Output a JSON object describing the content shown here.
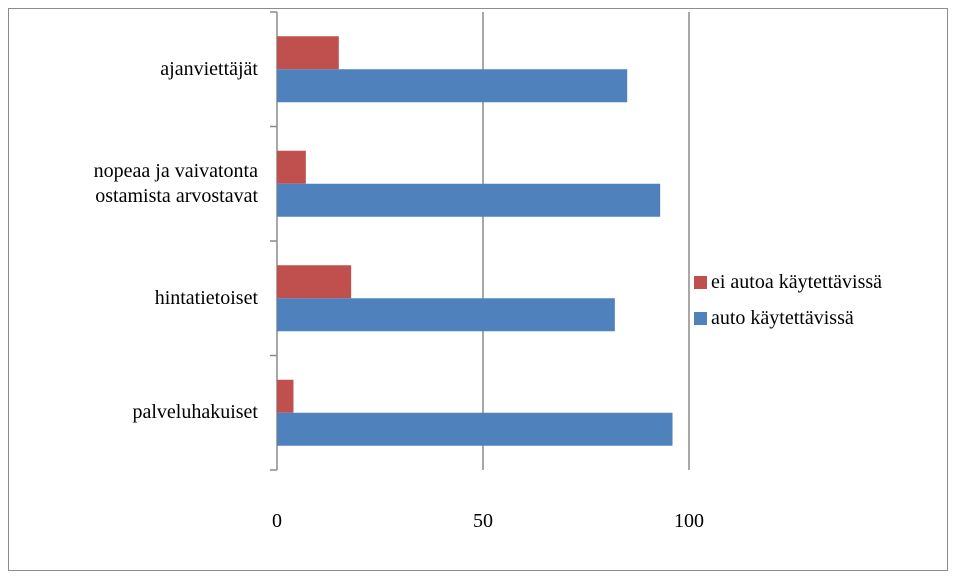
{
  "chart_data": {
    "type": "bar",
    "orientation": "horizontal",
    "categories": [
      "palveluhakuiset",
      "hintatietoiset",
      "nopeaa ja vaivatonta ostamista arvostavat",
      "ajanviettäjät"
    ],
    "category_lines": [
      [
        "palveluhakuiset"
      ],
      [
        "hintatietoiset"
      ],
      [
        "nopeaa ja vaivatonta",
        "ostamista arvostavat"
      ],
      [
        "ajanviettäjät"
      ]
    ],
    "series": [
      {
        "name": "auto käytettävissä",
        "color": "#4f81bd",
        "values": [
          96,
          82,
          93,
          85
        ]
      },
      {
        "name": "ei autoa käytettävissä",
        "color": "#c0504d",
        "values": [
          4,
          18,
          7,
          15
        ]
      }
    ],
    "xlim": [
      0,
      100
    ],
    "xticks": [
      "0",
      "50",
      "100"
    ],
    "grid": true,
    "legend_position": "right"
  }
}
